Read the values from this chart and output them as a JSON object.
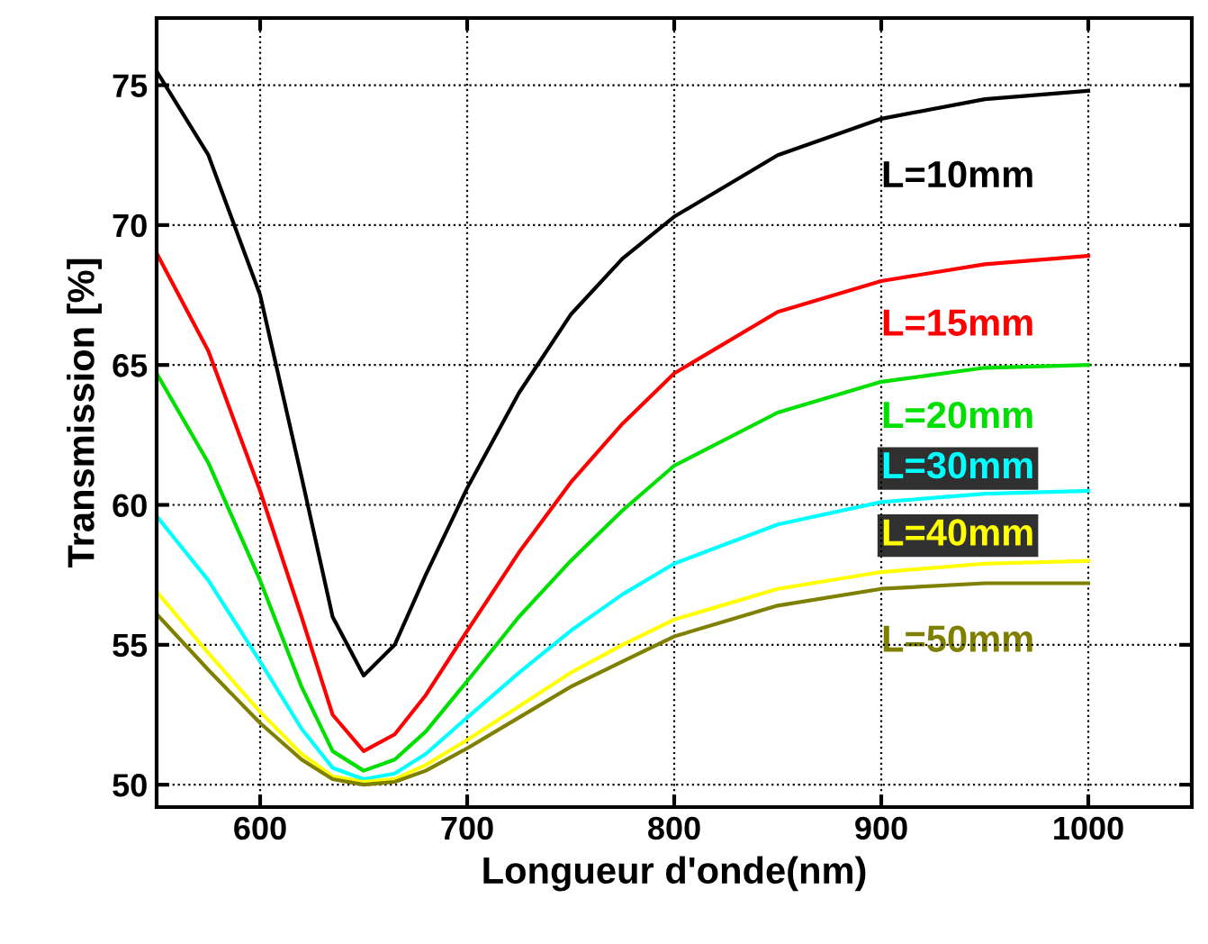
{
  "chart_data": {
    "type": "line",
    "xlabel": "Longueur d'onde(nm)",
    "ylabel": "Transmission [%]",
    "x": [
      550,
      575,
      600,
      620,
      635,
      650,
      665,
      680,
      700,
      725,
      750,
      775,
      800,
      850,
      900,
      950,
      1000
    ],
    "series": [
      {
        "name": "L=10mm",
        "color": "#000000",
        "values": [
          75.5,
          72.5,
          67.5,
          61,
          56,
          53.9,
          55,
          57.5,
          60.6,
          64,
          66.8,
          68.8,
          70.3,
          72.5,
          73.8,
          74.5,
          74.8
        ]
      },
      {
        "name": "L=15mm",
        "color": "#ff0000",
        "values": [
          69,
          65.5,
          60.5,
          56,
          52.5,
          51.2,
          51.8,
          53.2,
          55.5,
          58.3,
          60.8,
          62.9,
          64.7,
          66.9,
          68.0,
          68.6,
          68.9
        ]
      },
      {
        "name": "L=20mm",
        "color": "#00e000",
        "values": [
          64.7,
          61.5,
          57.3,
          53.5,
          51.2,
          50.5,
          50.9,
          51.9,
          53.7,
          56,
          58,
          59.8,
          61.4,
          63.3,
          64.4,
          64.9,
          65.0
        ]
      },
      {
        "name": "L=30mm",
        "color": "#00ffff",
        "values": [
          59.6,
          57.3,
          54.4,
          52,
          50.6,
          50.2,
          50.4,
          51.1,
          52.4,
          54,
          55.5,
          56.8,
          57.9,
          59.3,
          60.1,
          60.4,
          60.5
        ]
      },
      {
        "name": "L=40mm",
        "color": "#ffff00",
        "values": [
          56.9,
          54.7,
          52.6,
          51.1,
          50.3,
          50.1,
          50.2,
          50.7,
          51.6,
          52.8,
          54,
          55,
          55.9,
          57,
          57.6,
          57.9,
          58.0
        ]
      },
      {
        "name": "L=50mm",
        "color": "#808000",
        "values": [
          56.1,
          54.1,
          52.2,
          50.9,
          50.2,
          50.0,
          50.1,
          50.5,
          51.3,
          52.4,
          53.5,
          54.4,
          55.3,
          56.4,
          57.0,
          57.2,
          57.2
        ]
      }
    ],
    "xlim": [
      550,
      1050
    ],
    "ylim": [
      49.2,
      77.4
    ],
    "xticks": [
      600,
      700,
      800,
      900,
      1000
    ],
    "yticks": [
      50,
      55,
      60,
      65,
      70,
      75
    ],
    "grid": true,
    "legend": false,
    "marker": "none",
    "line_style": "solid"
  }
}
